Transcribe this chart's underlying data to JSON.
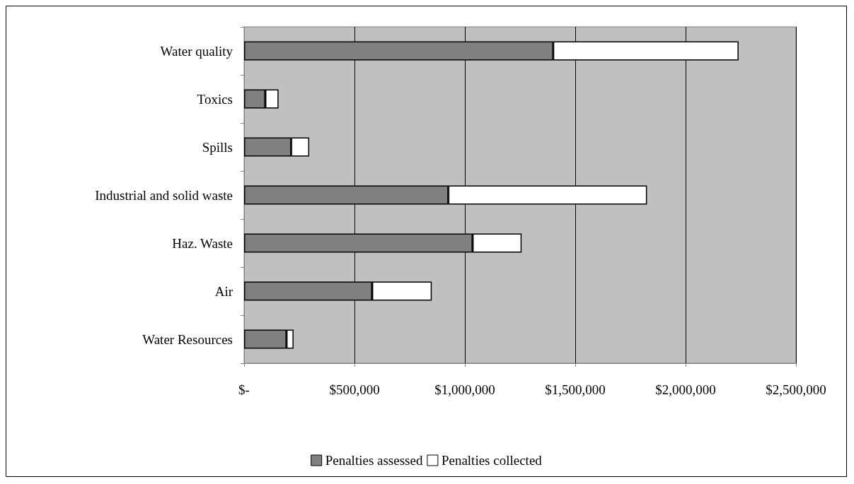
{
  "chart_data": {
    "type": "bar",
    "orientation": "horizontal",
    "stacked": true,
    "categories": [
      "Water quality",
      "Toxics",
      "Spills",
      "Industrial and solid waste",
      "Haz. Waste",
      "Air",
      "Water Resources"
    ],
    "series": [
      {
        "name": "Penalties assessed",
        "color": "#808080",
        "values": [
          1400000,
          96000,
          213000,
          925000,
          1035000,
          580000,
          192000
        ]
      },
      {
        "name": "Penalties collected",
        "color": "#ffffff",
        "values": [
          840000,
          60000,
          82000,
          900000,
          222000,
          270000,
          32000
        ]
      }
    ],
    "xlim": [
      0,
      2500000
    ],
    "xticks": [
      {
        "value": 0,
        "label": "$-"
      },
      {
        "value": 500000,
        "label": "$500,000"
      },
      {
        "value": 1000000,
        "label": "$1,000,000"
      },
      {
        "value": 1500000,
        "label": "$1,500,000"
      },
      {
        "value": 2000000,
        "label": "$2,000,000"
      },
      {
        "value": 2500000,
        "label": "$2,500,000"
      }
    ],
    "grid": "x",
    "legend": "bottom"
  }
}
